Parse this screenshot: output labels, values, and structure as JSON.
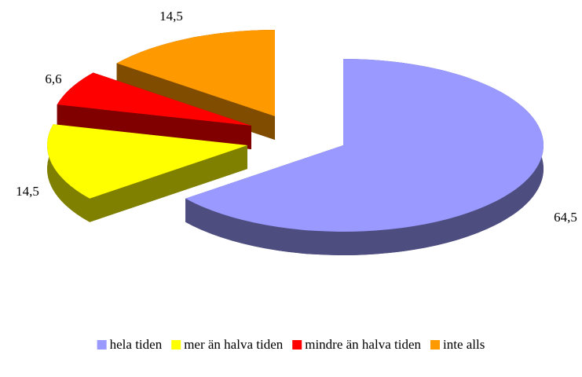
{
  "chart_data": {
    "type": "pie",
    "categories": [
      "hela tiden",
      "mer än halva tiden",
      "mindre än halva tiden",
      "inte alls"
    ],
    "values": [
      64.5,
      14.5,
      6.6,
      14.5
    ],
    "value_labels": [
      "64,5",
      "14,5",
      "6,6",
      "14,5"
    ],
    "colors": [
      "#9999ff",
      "#ffff00",
      "#ff0000",
      "#ff9900"
    ],
    "legend": "bottom"
  }
}
